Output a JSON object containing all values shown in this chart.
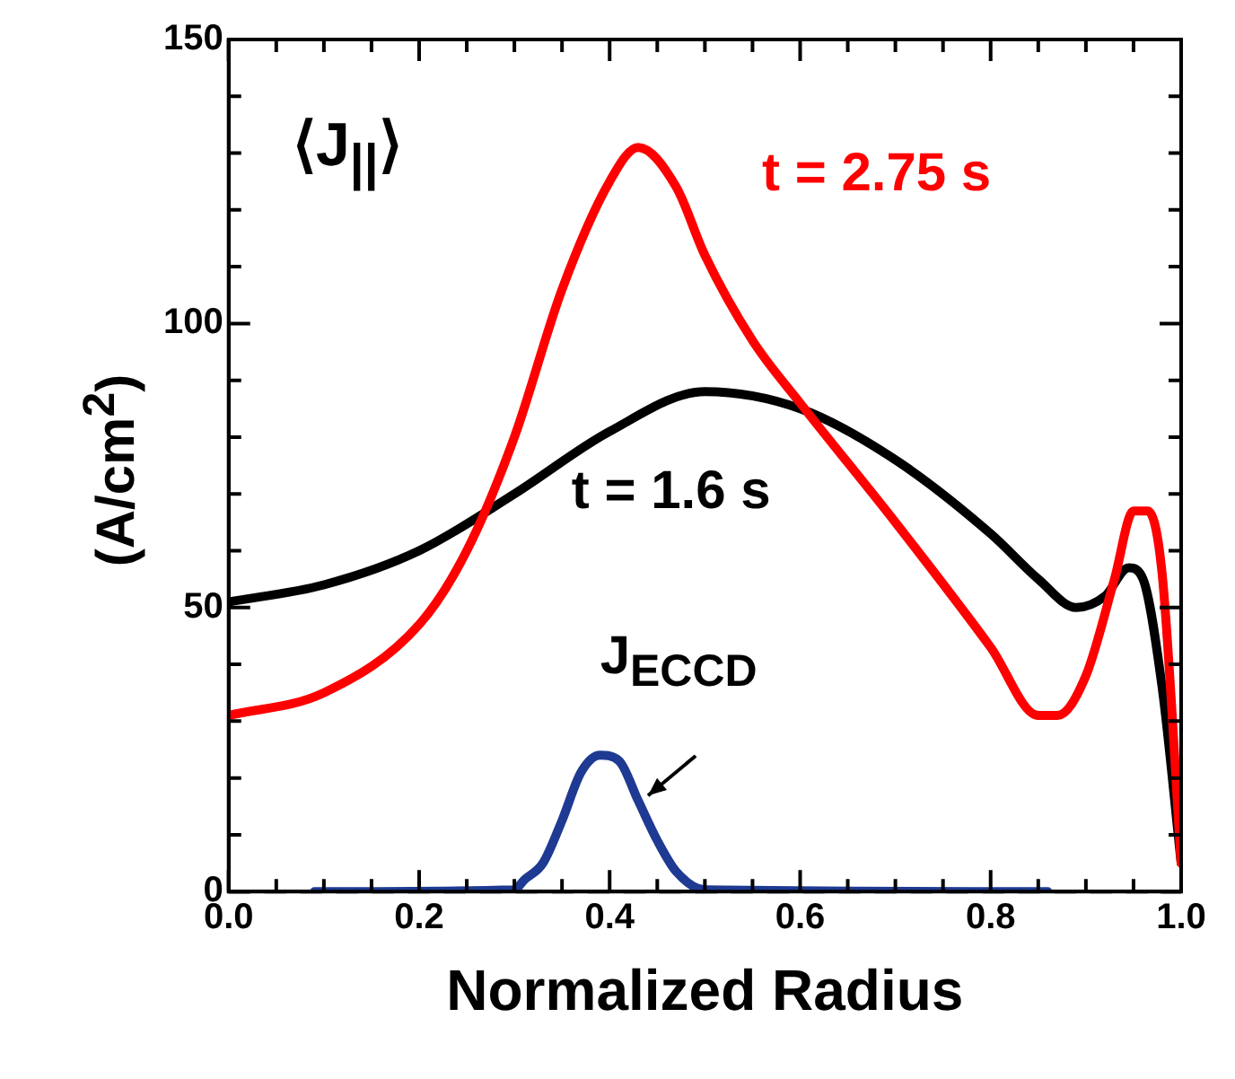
{
  "chart_data": {
    "type": "line",
    "xlabel": "Normalized Radius",
    "ylabel": "(A/cm$^{2}$)",
    "annotations": [
      "⟨J$_{||}$⟩"
    ],
    "xlim": [
      0,
      1
    ],
    "ylim": [
      0,
      150
    ],
    "xticks": [
      {
        "value": 0,
        "label": "0.0"
      },
      {
        "value": 0.05,
        "label": null
      },
      {
        "value": 0.1,
        "label": null
      },
      {
        "value": 0.15,
        "label": null
      },
      {
        "value": 0.2,
        "label": "0.2"
      },
      {
        "value": 0.25,
        "label": null
      },
      {
        "value": 0.3,
        "label": null
      },
      {
        "value": 0.35,
        "label": null
      },
      {
        "value": 0.4,
        "label": "0.4"
      },
      {
        "value": 0.45,
        "label": null
      },
      {
        "value": 0.5,
        "label": null
      },
      {
        "value": 0.55,
        "label": null
      },
      {
        "value": 0.6,
        "label": "0.6"
      },
      {
        "value": 0.65,
        "label": null
      },
      {
        "value": 0.7,
        "label": null
      },
      {
        "value": 0.75,
        "label": null
      },
      {
        "value": 0.8,
        "label": "0.8"
      },
      {
        "value": 0.85,
        "label": null
      },
      {
        "value": 0.9,
        "label": null
      },
      {
        "value": 0.95,
        "label": null
      },
      {
        "value": 1,
        "label": "1.0"
      }
    ],
    "yticks": [
      0,
      {
        "value": 10,
        "label": null
      },
      {
        "value": 20,
        "label": null
      },
      {
        "value": 30,
        "label": null
      },
      {
        "value": 40,
        "label": null
      },
      50,
      {
        "value": 60,
        "label": null
      },
      {
        "value": 70,
        "label": null
      },
      {
        "value": 80,
        "label": null
      },
      {
        "value": 90,
        "label": null
      },
      100,
      {
        "value": 110,
        "label": null
      },
      {
        "value": 120,
        "label": null
      },
      {
        "value": 130,
        "label": null
      },
      {
        "value": 140,
        "label": null
      },
      150
    ],
    "grid": false,
    "legend": false,
    "marker": "none",
    "line_style": "solid",
    "ref_lines": [
      {
        "axis": "y",
        "value": 0,
        "color": "#000000",
        "line_style": "dashed"
      }
    ],
    "series": [
      {
        "name": "t = 2.75 s",
        "color": "#ff0000",
        "x": [
          0,
          0.1,
          0.2,
          0.25,
          0.3,
          0.35,
          0.4,
          0.43,
          0.47,
          0.5,
          0.55,
          0.6,
          0.7,
          0.8,
          0.85,
          0.87,
          0.9,
          0.93,
          0.95,
          0.965,
          0.98,
          1
        ],
        "values": [
          31,
          35,
          47,
          60,
          80,
          106,
          125,
          131,
          124,
          112,
          97,
          86,
          65,
          43,
          31,
          31,
          38,
          55,
          67,
          67,
          56,
          5
        ]
      },
      {
        "name": "t = 1.6 s",
        "color": "#000000",
        "x": [
          0,
          0.1,
          0.2,
          0.3,
          0.4,
          0.5,
          0.6,
          0.7,
          0.8,
          0.85,
          0.89,
          0.92,
          0.945,
          0.96,
          0.98,
          1
        ],
        "values": [
          51,
          54,
          60,
          70,
          81,
          88,
          85,
          76,
          63,
          55,
          50,
          52,
          57,
          55,
          36,
          5
        ]
      },
      {
        "name": "J$_{ECCD}$",
        "color": "#1f3a93",
        "x": [
          0.09,
          0.3,
          0.31,
          0.33,
          0.35,
          0.37,
          0.39,
          0.41,
          0.43,
          0.45,
          0.47,
          0.5,
          0.86
        ],
        "values": [
          0,
          0.3,
          2,
          5,
          12.5,
          21,
          24,
          23,
          16,
          9,
          3.5,
          0.3,
          0
        ]
      }
    ]
  }
}
